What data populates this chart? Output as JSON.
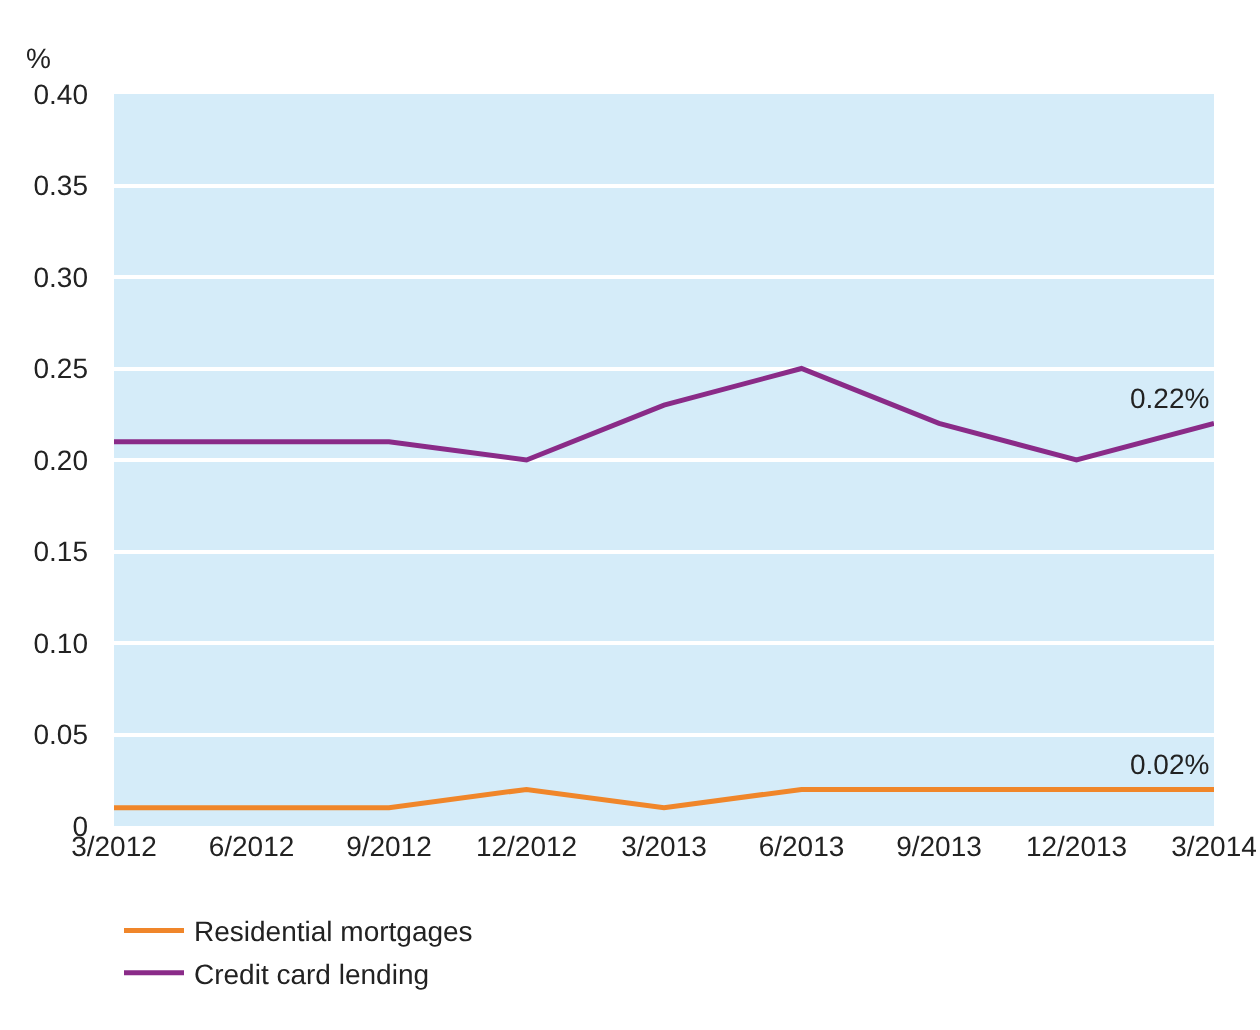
{
  "chart_data": {
    "type": "line",
    "ylabel": "%",
    "categories": [
      "3/2012",
      "6/2012",
      "9/2012",
      "12/2012",
      "3/2013",
      "6/2013",
      "9/2013",
      "12/2013",
      "3/2014"
    ],
    "series": [
      {
        "name": "Residential mortgages",
        "color": "#f0862a",
        "values": [
          0.01,
          0.01,
          0.01,
          0.02,
          0.01,
          0.02,
          0.02,
          0.02,
          0.02
        ]
      },
      {
        "name": "Credit card lending",
        "color": "#8a2b88",
        "values": [
          0.21,
          0.21,
          0.21,
          0.2,
          0.23,
          0.25,
          0.22,
          0.2,
          0.22
        ]
      }
    ],
    "ylim": [
      0,
      0.4
    ],
    "yticks": [
      {
        "value": 0,
        "label": "0"
      },
      {
        "value": 0.05,
        "label": "0.05"
      },
      {
        "value": 0.1,
        "label": "0.10"
      },
      {
        "value": 0.15,
        "label": "0.15"
      },
      {
        "value": 0.2,
        "label": "0.20"
      },
      {
        "value": 0.25,
        "label": "0.25"
      },
      {
        "value": 0.3,
        "label": "0.30"
      },
      {
        "value": 0.35,
        "label": "0.35"
      },
      {
        "value": 0.4,
        "label": "0.40"
      }
    ],
    "annotations": [
      {
        "text": "0.22%",
        "x": "3/2014",
        "y": 0.22
      },
      {
        "text": "0.02%",
        "x": "3/2014",
        "y": 0.02
      }
    ],
    "grid": "y",
    "legend": "bottom left",
    "marker": "none",
    "line_style": "solid"
  }
}
